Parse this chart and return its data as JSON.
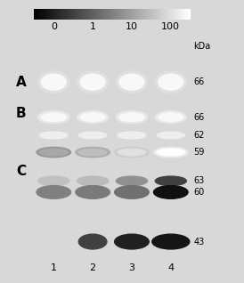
{
  "title_bar_colors": [
    "#ffffff",
    "#d0d0d0",
    "#a0a0a0",
    "#505050"
  ],
  "concentration_labels": [
    "0",
    "1",
    "10",
    "100"
  ],
  "panel_labels": [
    "A",
    "B",
    "C"
  ],
  "kda_label": "kDa",
  "panel_A_kda": [
    "66"
  ],
  "panel_B_kda": [
    "66",
    "62",
    "59"
  ],
  "panel_C_kda": [
    "63",
    "60",
    "43"
  ],
  "lane_labels": [
    "1",
    "2",
    "3",
    "4"
  ],
  "bg_color": "#c8c8c8",
  "panel_A_bg": "#1a1a1a",
  "panel_B_bg": "#c0c0c0",
  "panel_C_bg": "#d8d8d8"
}
